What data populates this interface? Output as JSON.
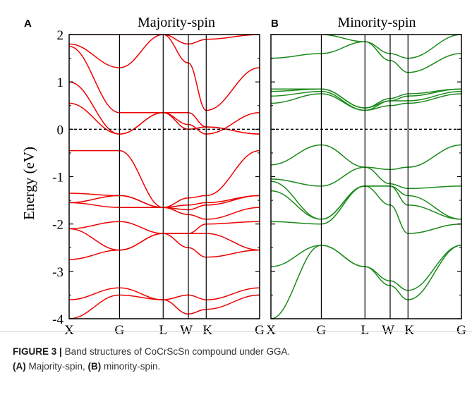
{
  "figure": {
    "caption_label": "FIGURE 3 |",
    "caption_line1": "Band structures of CoCrScSn compound under GGA.",
    "caption_line2_a": "(A)",
    "caption_line2_b": " Majority-spin, ",
    "caption_line2_c": "(B)",
    "caption_line2_d": " minority-spin."
  },
  "colors": {
    "majority": "#ee0000",
    "minority": "#1a8a1a",
    "axis": "#000000"
  },
  "chart_data": [
    {
      "type": "line",
      "panel_letter": "A",
      "title": "Majority-spin",
      "ylabel": "Energy (eV)",
      "ylim": [
        -4,
        2
      ],
      "y_ticks": [
        "2",
        "1",
        "0",
        "-1",
        "-2",
        "-3",
        "-4"
      ],
      "k_points": [
        "X",
        "G",
        "L",
        "W",
        "K",
        "G"
      ],
      "k_positions": [
        0,
        1,
        1.866,
        2.366,
        2.72,
        3.78
      ],
      "fermi_level": 0,
      "series_values_at_kpoints": [
        [
          -4.0,
          -3.5,
          -3.6,
          -3.9,
          -3.8,
          -3.5
        ],
        [
          -3.6,
          -3.35,
          -3.6,
          -3.5,
          -3.6,
          -3.35
        ],
        [
          -2.75,
          -2.55,
          -2.2,
          -2.5,
          -2.7,
          -2.55
        ],
        [
          -2.1,
          -2.55,
          -2.2,
          -2.2,
          -2.2,
          -2.55
        ],
        [
          -2.1,
          -1.95,
          -2.2,
          -2.2,
          -2.0,
          -1.95
        ],
        [
          -1.55,
          -1.65,
          -1.65,
          -1.8,
          -1.9,
          -1.65
        ],
        [
          -1.55,
          -1.4,
          -1.65,
          -1.7,
          -1.6,
          -1.4
        ],
        [
          -1.35,
          -1.4,
          -1.65,
          -1.6,
          -1.55,
          -1.4
        ],
        [
          -0.45,
          -0.45,
          -1.65,
          -1.45,
          -1.4,
          -0.45
        ],
        [
          0.55,
          -0.1,
          0.35,
          0.0,
          0.05,
          -0.1
        ],
        [
          1.0,
          -0.1,
          0.35,
          0.35,
          0.05,
          -0.1
        ],
        [
          1.75,
          0.35,
          0.35,
          0.1,
          -0.1,
          0.35
        ],
        [
          1.8,
          1.3,
          2.0,
          1.4,
          0.4,
          1.3
        ],
        [
          2.0,
          2.0,
          2.0,
          1.8,
          1.9,
          2.0
        ]
      ]
    },
    {
      "type": "line",
      "panel_letter": "B",
      "title": "Minority-spin",
      "ylabel": "",
      "ylim": [
        -4,
        2
      ],
      "y_ticks": [
        "2",
        "1",
        "0",
        "-1",
        "-2",
        "-3",
        "-4"
      ],
      "k_points": [
        "X",
        "G",
        "L",
        "W",
        "K",
        "G"
      ],
      "k_positions": [
        0,
        1,
        1.866,
        2.366,
        2.72,
        3.78
      ],
      "fermi_level": 0,
      "series_values_at_kpoints": [
        [
          -4.0,
          -2.45,
          -2.9,
          -3.3,
          -3.6,
          -2.45
        ],
        [
          -2.9,
          -2.45,
          -2.9,
          -3.2,
          -3.4,
          -2.45
        ],
        [
          -1.95,
          -2.0,
          -1.2,
          -1.6,
          -2.2,
          -2.0
        ],
        [
          -1.3,
          -1.9,
          -1.2,
          -1.2,
          -1.6,
          -1.9
        ],
        [
          -1.1,
          -1.9,
          -1.2,
          -1.2,
          -1.4,
          -1.9
        ],
        [
          -1.05,
          -1.2,
          -0.8,
          -1.15,
          -1.25,
          -1.2
        ],
        [
          -0.75,
          -0.33,
          -0.8,
          -0.85,
          -0.8,
          -0.33
        ],
        [
          0.55,
          0.75,
          0.4,
          0.5,
          0.55,
          0.75
        ],
        [
          0.7,
          0.8,
          0.4,
          0.6,
          0.6,
          0.8
        ],
        [
          0.8,
          0.85,
          0.45,
          0.6,
          0.7,
          0.85
        ],
        [
          0.85,
          0.85,
          0.45,
          0.65,
          0.75,
          0.85
        ],
        [
          1.5,
          1.6,
          1.85,
          1.45,
          1.2,
          1.6
        ],
        [
          2.0,
          2.0,
          1.85,
          1.6,
          1.5,
          2.0
        ]
      ]
    }
  ]
}
